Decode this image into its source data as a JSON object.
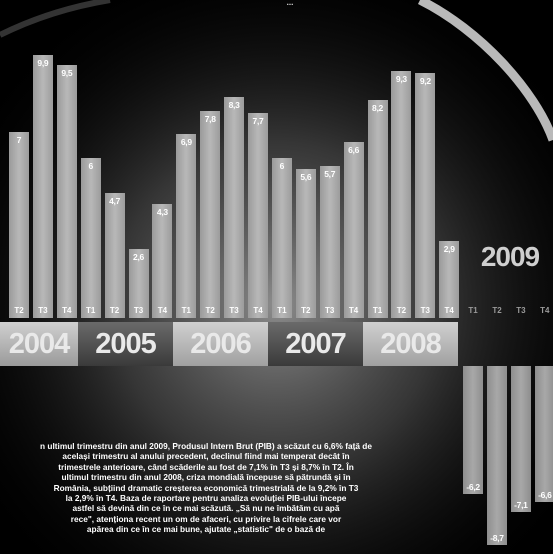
{
  "title": "...",
  "year_2009_label": "2009",
  "body_text": "n ultimul trimestru din anul 2009, Produsul Intern Brut (PIB) a scăzut cu 6,6% față de\nacelași trimestru al anului precedent, declinul fiind mai temperat decât în\ntrimestrele anterioare, când scăderile au fost de 7,1% în T3 și 8,7% în T2. În\nultimul trimestru din anul 2008, criza mondială începuse să pătrundă și în\nRomânia, subțiind dramatic creșterea economică trimestrială de la 9,2% în T3\nla 2,9% în T4. Baza de raportare pentru analiza evoluției PIB-ului începe\nastfel să devină din ce în ce mai scăzută. „Să nu ne îmbătăm cu apă\nrece\", atenționa recent un om de afaceri, cu privire la cifrele care vor\napărea din ce în ce mai bune, ajutate „statistic\" de o bază de",
  "colors": {
    "background": "#000000",
    "bar": "#a8a8a8",
    "year_band_light": "#c8c8c8",
    "year_band_dark": "#5a5a5a"
  },
  "chart_data": {
    "type": "bar",
    "years": [
      {
        "label": "2004",
        "quarters": [
          "T2",
          "T3",
          "T4"
        ]
      },
      {
        "label": "2005",
        "quarters": [
          "T1",
          "T2",
          "T3",
          "T4"
        ]
      },
      {
        "label": "2006",
        "quarters": [
          "T1",
          "T2",
          "T3",
          "T4"
        ]
      },
      {
        "label": "2007",
        "quarters": [
          "T1",
          "T2",
          "T3",
          "T4"
        ]
      },
      {
        "label": "2008",
        "quarters": [
          "T1",
          "T2",
          "T3",
          "T4"
        ]
      },
      {
        "label": "2009",
        "quarters": [
          "T1",
          "T2",
          "T3",
          "T4"
        ]
      }
    ],
    "categories": [
      "T2",
      "T3",
      "T4",
      "T1",
      "T2",
      "T3",
      "T4",
      "T1",
      "T2",
      "T3",
      "T4",
      "T1",
      "T2",
      "T3",
      "T4",
      "T1",
      "T2",
      "T3",
      "T4",
      "T1",
      "T2",
      "T3",
      "T4"
    ],
    "values": [
      7,
      9.9,
      9.5,
      6,
      4.7,
      2.6,
      4.3,
      6.9,
      7.8,
      8.3,
      7.7,
      6,
      5.6,
      5.7,
      6.6,
      8.2,
      9.3,
      9.2,
      2.9,
      -6.2,
      -8.7,
      -7.1,
      -6.6
    ],
    "value_labels": [
      "7",
      "9,9",
      "9,5",
      "6",
      "4,7",
      "2,6",
      "4,3",
      "6,9",
      "7,8",
      "8,3",
      "7,7",
      "6",
      "5,6",
      "5,7",
      "6,6",
      "8,2",
      "9,3",
      "9,2",
      "2,9",
      "-6,2",
      "-8,7",
      "-7,1",
      "-6,6"
    ],
    "title": "",
    "xlabel": "",
    "ylabel": "",
    "grid": false,
    "legend": "none"
  }
}
